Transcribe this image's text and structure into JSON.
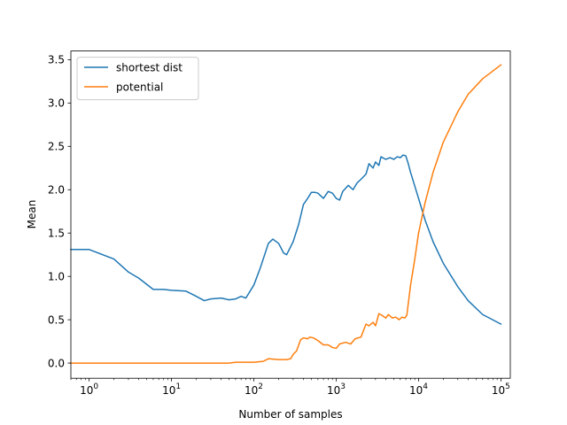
{
  "chart_data": {
    "type": "line",
    "title": "",
    "xlabel": "Number of samples",
    "ylabel": "Mean",
    "xscale": "log",
    "xlim": [
      0.6,
      130000
    ],
    "ylim": [
      -0.175,
      3.6
    ],
    "x_ticks": [
      {
        "value": 1,
        "base": "10",
        "exp": "0"
      },
      {
        "value": 10,
        "base": "10",
        "exp": "1"
      },
      {
        "value": 100,
        "base": "10",
        "exp": "2"
      },
      {
        "value": 1000,
        "base": "10",
        "exp": "3"
      },
      {
        "value": 10000,
        "base": "10",
        "exp": "4"
      },
      {
        "value": 100000,
        "base": "10",
        "exp": "5"
      }
    ],
    "y_ticks": [
      {
        "value": 0.0,
        "label": "0.0"
      },
      {
        "value": 0.5,
        "label": "0.5"
      },
      {
        "value": 1.0,
        "label": "1.0"
      },
      {
        "value": 1.5,
        "label": "1.5"
      },
      {
        "value": 2.0,
        "label": "2.0"
      },
      {
        "value": 2.5,
        "label": "2.5"
      },
      {
        "value": 3.0,
        "label": "3.0"
      },
      {
        "value": 3.5,
        "label": "3.5"
      }
    ],
    "grid": false,
    "legend_position": "top-left",
    "series": [
      {
        "name": "shortest dist",
        "color": "#1f77b4",
        "points": [
          [
            0.6,
            1.31
          ],
          [
            1,
            1.31
          ],
          [
            2,
            1.2
          ],
          [
            3,
            1.05
          ],
          [
            4,
            0.98
          ],
          [
            6,
            0.85
          ],
          [
            8,
            0.85
          ],
          [
            10,
            0.84
          ],
          [
            15,
            0.83
          ],
          [
            20,
            0.77
          ],
          [
            25,
            0.72
          ],
          [
            30,
            0.74
          ],
          [
            40,
            0.75
          ],
          [
            50,
            0.73
          ],
          [
            60,
            0.74
          ],
          [
            70,
            0.77
          ],
          [
            80,
            0.75
          ],
          [
            100,
            0.9
          ],
          [
            120,
            1.1
          ],
          [
            150,
            1.38
          ],
          [
            170,
            1.43
          ],
          [
            200,
            1.38
          ],
          [
            230,
            1.27
          ],
          [
            250,
            1.25
          ],
          [
            300,
            1.4
          ],
          [
            350,
            1.6
          ],
          [
            400,
            1.83
          ],
          [
            450,
            1.9
          ],
          [
            500,
            1.97
          ],
          [
            550,
            1.97
          ],
          [
            600,
            1.96
          ],
          [
            700,
            1.9
          ],
          [
            800,
            1.98
          ],
          [
            900,
            1.96
          ],
          [
            1000,
            1.9
          ],
          [
            1100,
            1.88
          ],
          [
            1200,
            1.98
          ],
          [
            1400,
            2.05
          ],
          [
            1600,
            2.0
          ],
          [
            1800,
            2.08
          ],
          [
            2000,
            2.12
          ],
          [
            2300,
            2.18
          ],
          [
            2500,
            2.3
          ],
          [
            2800,
            2.25
          ],
          [
            3000,
            2.32
          ],
          [
            3300,
            2.28
          ],
          [
            3500,
            2.38
          ],
          [
            4000,
            2.35
          ],
          [
            4500,
            2.37
          ],
          [
            5000,
            2.35
          ],
          [
            5500,
            2.38
          ],
          [
            6000,
            2.37
          ],
          [
            6500,
            2.4
          ],
          [
            7000,
            2.39
          ],
          [
            7500,
            2.3
          ],
          [
            8000,
            2.2
          ],
          [
            10000,
            1.9
          ],
          [
            12000,
            1.65
          ],
          [
            15000,
            1.4
          ],
          [
            20000,
            1.15
          ],
          [
            30000,
            0.88
          ],
          [
            40000,
            0.72
          ],
          [
            60000,
            0.56
          ],
          [
            100000,
            0.45
          ]
        ]
      },
      {
        "name": "potential",
        "color": "#ff7f0e",
        "points": [
          [
            0.6,
            0.0
          ],
          [
            1,
            0.0
          ],
          [
            3,
            0.0
          ],
          [
            10,
            0.0
          ],
          [
            30,
            0.0
          ],
          [
            50,
            0.0
          ],
          [
            60,
            0.01
          ],
          [
            100,
            0.01
          ],
          [
            130,
            0.02
          ],
          [
            150,
            0.05
          ],
          [
            200,
            0.04
          ],
          [
            250,
            0.04
          ],
          [
            280,
            0.05
          ],
          [
            300,
            0.1
          ],
          [
            330,
            0.14
          ],
          [
            370,
            0.27
          ],
          [
            400,
            0.29
          ],
          [
            450,
            0.28
          ],
          [
            480,
            0.3
          ],
          [
            530,
            0.29
          ],
          [
            600,
            0.26
          ],
          [
            700,
            0.21
          ],
          [
            800,
            0.21
          ],
          [
            900,
            0.18
          ],
          [
            1000,
            0.17
          ],
          [
            1100,
            0.22
          ],
          [
            1300,
            0.24
          ],
          [
            1500,
            0.22
          ],
          [
            1700,
            0.28
          ],
          [
            2000,
            0.3
          ],
          [
            2300,
            0.45
          ],
          [
            2500,
            0.43
          ],
          [
            2800,
            0.47
          ],
          [
            3000,
            0.43
          ],
          [
            3300,
            0.57
          ],
          [
            3600,
            0.55
          ],
          [
            4000,
            0.52
          ],
          [
            4300,
            0.56
          ],
          [
            4800,
            0.52
          ],
          [
            5300,
            0.53
          ],
          [
            5800,
            0.5
          ],
          [
            6300,
            0.53
          ],
          [
            6800,
            0.52
          ],
          [
            7200,
            0.55
          ],
          [
            8000,
            0.9
          ],
          [
            9000,
            1.2
          ],
          [
            10000,
            1.5
          ],
          [
            12000,
            1.85
          ],
          [
            15000,
            2.2
          ],
          [
            20000,
            2.55
          ],
          [
            30000,
            2.9
          ],
          [
            40000,
            3.1
          ],
          [
            60000,
            3.28
          ],
          [
            100000,
            3.44
          ]
        ]
      }
    ]
  }
}
